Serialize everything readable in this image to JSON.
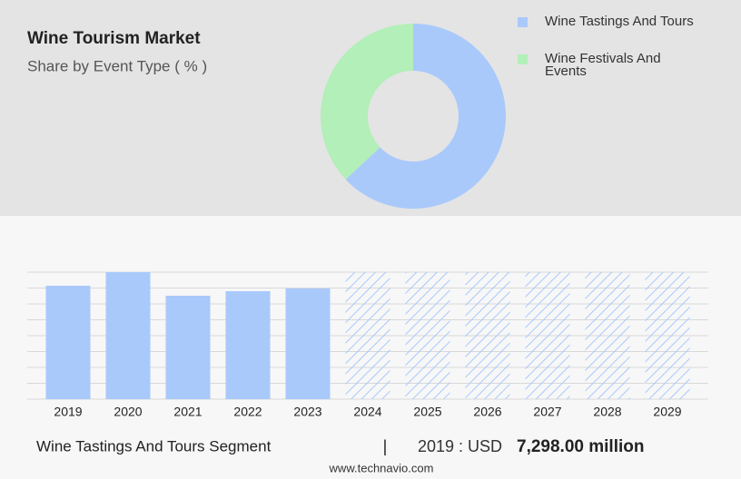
{
  "chart_data": [
    {
      "type": "pie",
      "title": "Wine Tourism Market",
      "subtitle": "Share by Event Type ( % )",
      "categories": [
        "Wine Tastings And Tours",
        "Wine Festivals And Events"
      ],
      "values": [
        63,
        37
      ],
      "colors": [
        "#a9c9fb",
        "#b3efb8"
      ]
    },
    {
      "type": "bar",
      "categories": [
        "2019",
        "2020",
        "2021",
        "2022",
        "2023",
        "2024",
        "2025",
        "2026",
        "2027",
        "2028",
        "2029"
      ],
      "values": [
        7298,
        8173,
        6655,
        6947,
        7123,
        null,
        null,
        null,
        null,
        null,
        null
      ],
      "color": "#a9c9fb",
      "ylim": [
        0,
        8173
      ]
    }
  ],
  "footer": {
    "segment": "Wine Tastings And Tours Segment",
    "separator": "|",
    "year_currency": "2019 : USD",
    "value": "7,298.00 million",
    "site": "www.technavio.com"
  }
}
